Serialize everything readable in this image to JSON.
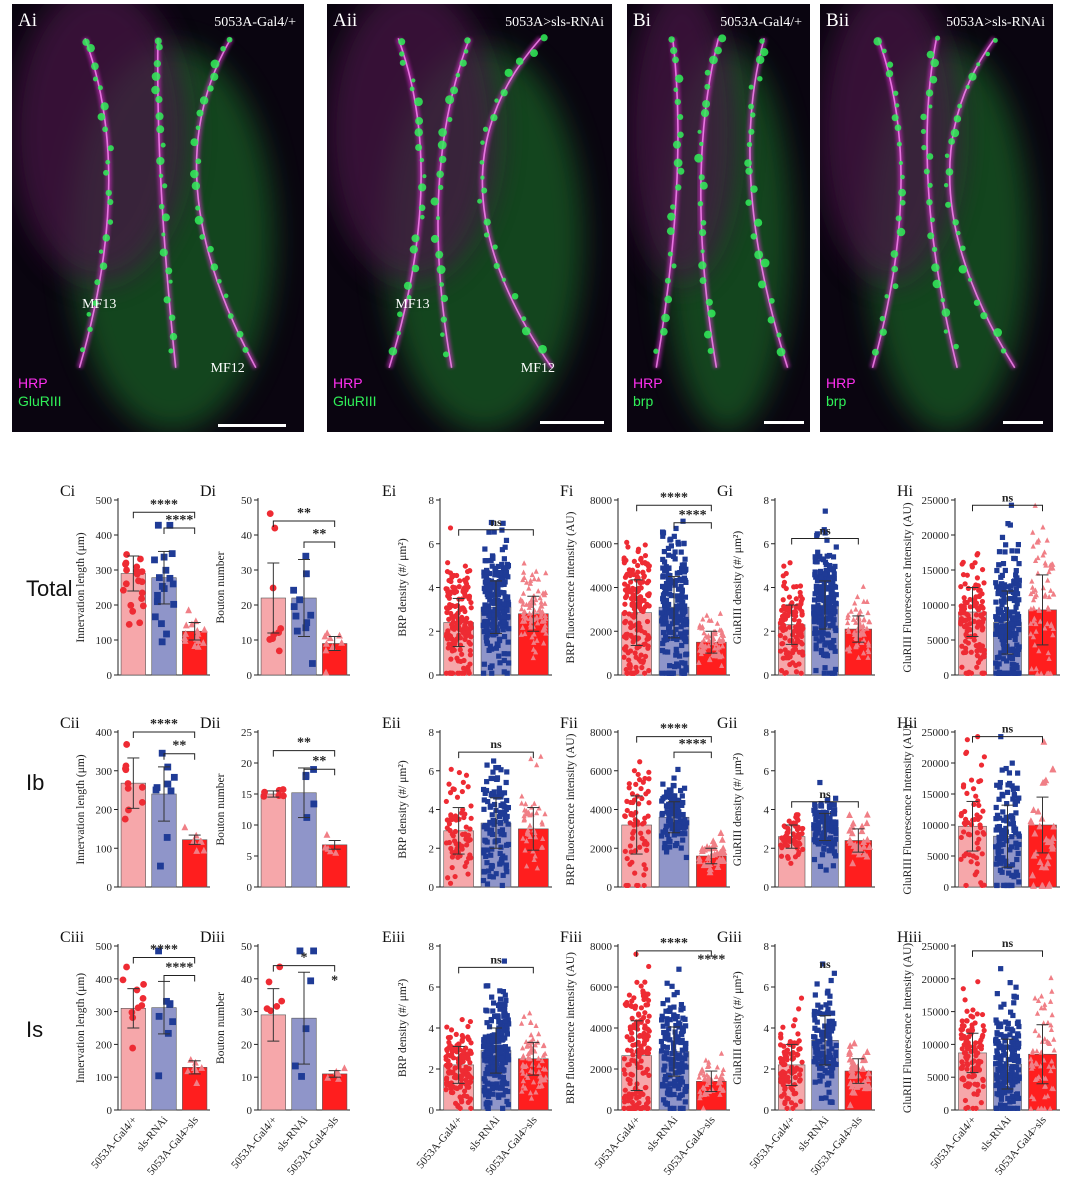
{
  "colors": {
    "control": "#ee2b33",
    "control_bar": "#f6a7aa",
    "rnai": "#1f3b96",
    "rnai_bar": "#8f95c9",
    "oe": "#ff0000",
    "oe_bar": "#ff1e1e",
    "oe_point": "#f07f86",
    "magenta": "#ff30f0",
    "green": "#30f058"
  },
  "micrographs": [
    {
      "panel": "Ai",
      "genotype": "5053A-Gal4/+",
      "stain1": "HRP",
      "stain2": "GluRIII",
      "labels": [
        "MF13",
        "MF12"
      ]
    },
    {
      "panel": "Aii",
      "genotype": "5053A>sls-RNAi",
      "stain1": "HRP",
      "stain2": "GluRIII",
      "labels": [
        "MF13",
        "MF12"
      ]
    },
    {
      "panel": "Bi",
      "genotype": "5053A-Gal4/+",
      "stain1": "HRP",
      "stain2": "brp",
      "labels": []
    },
    {
      "panel": "Bii",
      "genotype": "5053A>sls-RNAi",
      "stain1": "HRP",
      "stain2": "brp",
      "labels": []
    }
  ],
  "row_labels": [
    "Total",
    "Ib",
    "Is"
  ],
  "group_labels": [
    "5053A-Gal4/+",
    "sls-RNAi",
    "5053A-Gal4>sls"
  ],
  "group_labels_D": [
    "5053A-Gal4/+",
    "sls-RNAi",
    "5053A-Gal4>sls"
  ],
  "chart_data": [
    {
      "panel": "Ci",
      "type": "bar",
      "ylabel": "Innervation length (μm)",
      "ylim": [
        0,
        500
      ],
      "ticks": [
        0,
        100,
        200,
        300,
        400,
        500
      ],
      "values": [
        290,
        278,
        125
      ],
      "err": [
        50,
        75,
        25
      ],
      "n": [
        20,
        18,
        16
      ],
      "sig": [
        {
          "text": "****",
          "from": 0,
          "to": 2,
          "level": 0.93
        },
        {
          "text": "****",
          "from": 1,
          "to": 2,
          "level": 0.84
        }
      ]
    },
    {
      "panel": "Di",
      "type": "bar",
      "ylabel": "Bouton number",
      "ylim": [
        0,
        50
      ],
      "ticks": [
        0,
        10,
        20,
        30,
        40,
        50
      ],
      "values": [
        22,
        22,
        9
      ],
      "err": [
        10,
        11,
        2
      ],
      "n": [
        9,
        11,
        9
      ],
      "sig": [
        {
          "text": "**",
          "from": 0,
          "to": 2,
          "level": 0.88
        },
        {
          "text": "**",
          "from": 1,
          "to": 2,
          "level": 0.76
        }
      ]
    },
    {
      "panel": "Ei",
      "type": "bar",
      "ylabel": "BRP density (#/ μm²)",
      "ylim": [
        0,
        8
      ],
      "ticks": [
        0,
        2,
        4,
        6,
        8
      ],
      "values": [
        2.4,
        3.1,
        2.8
      ],
      "err": [
        1.1,
        1.2,
        0.8
      ],
      "n": [
        160,
        220,
        90
      ],
      "sig": [
        {
          "text": "ns",
          "from": 0,
          "to": 2,
          "level": 0.83
        }
      ]
    },
    {
      "panel": "Fi",
      "type": "bar",
      "ylabel": "BRP fluorescence intensity (AU)",
      "ylim": [
        0,
        8000
      ],
      "ticks": [
        0,
        2000,
        4000,
        6000,
        8000
      ],
      "values": [
        2850,
        3100,
        1500
      ],
      "err": [
        1500,
        1400,
        500
      ],
      "n": [
        170,
        210,
        70
      ],
      "sig": [
        {
          "text": "****",
          "from": 0,
          "to": 2,
          "level": 0.97
        },
        {
          "text": "****",
          "from": 1,
          "to": 2,
          "level": 0.87
        }
      ]
    },
    {
      "panel": "Gi",
      "type": "bar",
      "ylabel": "GluRIII density (#/ μm²)",
      "ylim": [
        0,
        8
      ],
      "ticks": [
        0,
        2,
        4,
        6,
        8
      ],
      "values": [
        2.3,
        3.2,
        2.1
      ],
      "err": [
        0.9,
        1.1,
        0.6
      ],
      "n": [
        120,
        200,
        60
      ],
      "sig": [
        {
          "text": "ns",
          "from": 0,
          "to": 2,
          "level": 0.78
        }
      ]
    },
    {
      "panel": "Hi",
      "type": "bar",
      "ylabel": "GluRIII Fluorescence Intensity (AU)",
      "ylim": [
        0,
        25000
      ],
      "ticks": [
        0,
        5000,
        10000,
        15000,
        20000,
        25000
      ],
      "values": [
        9000,
        7500,
        9300
      ],
      "err": [
        3500,
        4500,
        5000
      ],
      "n": [
        120,
        190,
        70
      ],
      "sig": [
        {
          "text": "ns",
          "from": 0,
          "to": 2,
          "level": 0.97
        }
      ]
    },
    {
      "panel": "Cii",
      "type": "bar",
      "ylabel": "Innervation length (μm)",
      "ylim": [
        0,
        400
      ],
      "ticks": [
        0,
        100,
        200,
        300,
        400
      ],
      "values": [
        268,
        240,
        122
      ],
      "err": [
        65,
        70,
        12
      ],
      "n": [
        10,
        9,
        7
      ],
      "sig": [
        {
          "text": "****",
          "from": 0,
          "to": 2,
          "level": 1.0
        },
        {
          "text": "**",
          "from": 1,
          "to": 2,
          "level": 0.86
        }
      ]
    },
    {
      "panel": "Dii",
      "type": "bar",
      "ylabel": "Bouton number",
      "ylim": [
        0,
        25
      ],
      "ticks": [
        0,
        5,
        10,
        15,
        20,
        25
      ],
      "values": [
        15,
        15.2,
        6.8
      ],
      "err": [
        0.5,
        4,
        0.7
      ],
      "n": [
        6,
        5,
        5
      ],
      "sig": [
        {
          "text": "**",
          "from": 0,
          "to": 2,
          "level": 0.88
        },
        {
          "text": "**",
          "from": 1,
          "to": 2,
          "level": 0.76
        }
      ]
    },
    {
      "panel": "Eii",
      "type": "bar",
      "ylabel": "BRP density (#/ μm²)",
      "ylim": [
        0,
        8
      ],
      "ticks": [
        0,
        2,
        4,
        6,
        8
      ],
      "values": [
        2.9,
        3.3,
        3.0
      ],
      "err": [
        1.2,
        1.3,
        1.1
      ],
      "n": [
        70,
        110,
        45
      ],
      "sig": [
        {
          "text": "ns",
          "from": 0,
          "to": 2,
          "level": 0.87
        }
      ]
    },
    {
      "panel": "Fii",
      "type": "bar",
      "ylabel": "BRP fluorescence intensity (AU)",
      "ylim": [
        0,
        8000
      ],
      "ticks": [
        0,
        2000,
        4000,
        6000,
        8000
      ],
      "values": [
        3200,
        3600,
        1600
      ],
      "err": [
        1500,
        800,
        400
      ],
      "n": [
        70,
        100,
        35
      ],
      "sig": [
        {
          "text": "****",
          "from": 0,
          "to": 2,
          "level": 0.97
        },
        {
          "text": "****",
          "from": 1,
          "to": 2,
          "level": 0.87
        }
      ]
    },
    {
      "panel": "Gii",
      "type": "bar",
      "ylabel": "GluRIII density (#/ μm²)",
      "ylim": [
        0,
        8
      ],
      "ticks": [
        0,
        2,
        4,
        6,
        8
      ],
      "values": [
        2.6,
        3.1,
        2.4
      ],
      "err": [
        0.6,
        0.7,
        0.6
      ],
      "n": [
        60,
        120,
        30
      ],
      "sig": [
        {
          "text": "ns",
          "from": 0,
          "to": 2,
          "level": 0.55
        }
      ]
    },
    {
      "panel": "Hii",
      "type": "bar",
      "ylabel": "GluRIII Fluorescence Intensity (AU)",
      "ylim": [
        0,
        25000
      ],
      "ticks": [
        0,
        5000,
        10000,
        15000,
        20000,
        25000
      ],
      "values": [
        9800,
        8200,
        10000
      ],
      "err": [
        4000,
        5000,
        4500
      ],
      "n": [
        60,
        110,
        35
      ],
      "sig": [
        {
          "text": "ns",
          "from": 0,
          "to": 2,
          "level": 0.97
        }
      ]
    },
    {
      "panel": "Ciii",
      "type": "bar",
      "ylabel": "Innervation length (μm)",
      "ylim": [
        0,
        500
      ],
      "ticks": [
        0,
        100,
        200,
        300,
        400,
        500
      ],
      "values": [
        310,
        312,
        130
      ],
      "err": [
        60,
        80,
        20
      ],
      "n": [
        10,
        8,
        7
      ],
      "sig": [
        {
          "text": "****",
          "from": 0,
          "to": 2,
          "level": 0.93
        },
        {
          "text": "****",
          "from": 1,
          "to": 2,
          "level": 0.82
        }
      ]
    },
    {
      "panel": "Diii",
      "type": "bar",
      "ylabel": "Bouton number",
      "ylim": [
        0,
        50
      ],
      "ticks": [
        0,
        10,
        20,
        30,
        40,
        50
      ],
      "values": [
        29,
        28,
        11
      ],
      "err": [
        8,
        14,
        1
      ],
      "n": [
        6,
        6,
        5
      ],
      "sig": [
        {
          "text": "*",
          "from": 0,
          "to": 2,
          "level": 0.88
        },
        {
          "text": "*",
          "from": 2,
          "to": 2,
          "level": 0.74
        }
      ]
    },
    {
      "panel": "Eiii",
      "type": "bar",
      "ylabel": "BRP density (#/ μm²)",
      "ylim": [
        0,
        8
      ],
      "ticks": [
        0,
        2,
        4,
        6,
        8
      ],
      "values": [
        2.2,
        2.9,
        2.5
      ],
      "err": [
        0.9,
        1.1,
        0.8
      ],
      "n": [
        140,
        200,
        70
      ],
      "sig": [
        {
          "text": "ns",
          "from": 0,
          "to": 2,
          "level": 0.87
        }
      ]
    },
    {
      "panel": "Fiii",
      "type": "bar",
      "ylabel": "BRP fluorescence intensity (AU)",
      "ylim": [
        0,
        8000
      ],
      "ticks": [
        0,
        2000,
        4000,
        6000,
        8000
      ],
      "values": [
        2650,
        2850,
        1400
      ],
      "err": [
        1700,
        1200,
        500
      ],
      "n": [
        150,
        140,
        50
      ],
      "sig": [
        {
          "text": "****",
          "from": 0,
          "to": 2,
          "level": 0.97
        },
        {
          "text": "****",
          "from": 2,
          "to": 2,
          "level": 0.87
        }
      ]
    },
    {
      "panel": "Giii",
      "type": "bar",
      "ylabel": "GluRIII density (#/ μm²)",
      "ylim": [
        0,
        8
      ],
      "ticks": [
        0,
        2,
        4,
        6,
        8
      ],
      "values": [
        2.2,
        3.4,
        1.9
      ],
      "err": [
        1.0,
        1.2,
        0.6
      ],
      "n": [
        90,
        110,
        40
      ],
      "sig": [
        {
          "text": "ns",
          "from": 1,
          "to": 1,
          "level": 0.84
        }
      ]
    },
    {
      "panel": "Hiii",
      "type": "bar",
      "ylabel": "GluRIII Fluorescence Intensity (AU)",
      "ylim": [
        0,
        25000
      ],
      "ticks": [
        0,
        5000,
        10000,
        15000,
        20000,
        25000
      ],
      "values": [
        8700,
        7000,
        8500
      ],
      "err": [
        3000,
        3800,
        4500
      ],
      "n": [
        110,
        170,
        60
      ],
      "sig": [
        {
          "text": "ns",
          "from": 0,
          "to": 2,
          "level": 0.97
        }
      ]
    }
  ]
}
